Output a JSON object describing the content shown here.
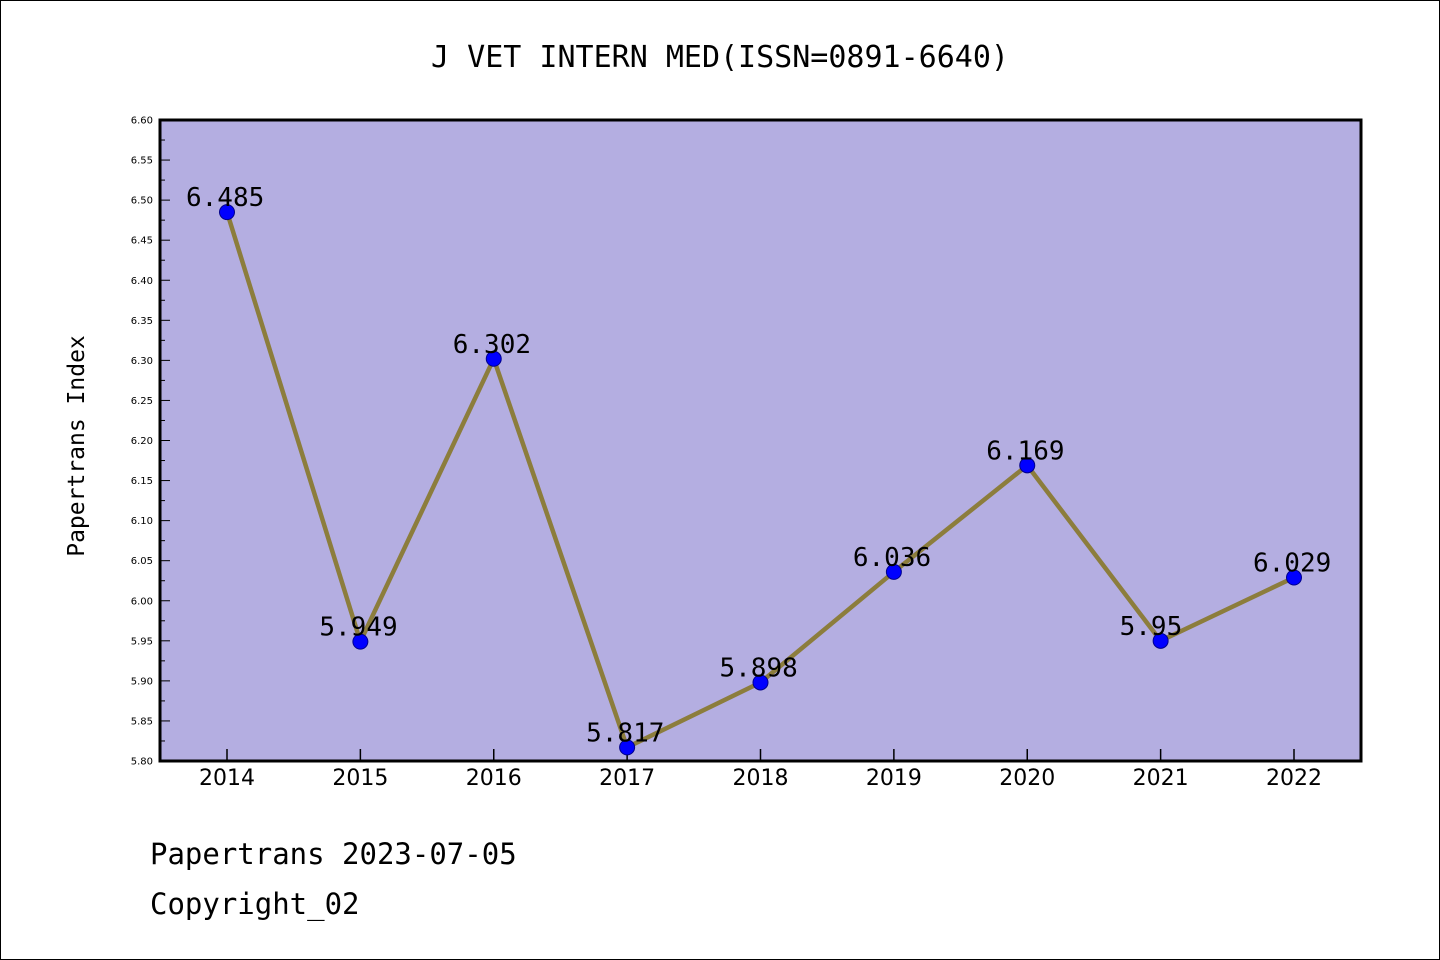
{
  "chart_data": {
    "type": "line",
    "title": "J VET INTERN MED(ISSN=0891-6640)",
    "xlabel": "",
    "ylabel": "Papertrans Index",
    "categories": [
      "2014",
      "2015",
      "2016",
      "2017",
      "2018",
      "2019",
      "2020",
      "2021",
      "2022"
    ],
    "values": [
      6.485,
      5.949,
      6.302,
      5.817,
      5.898,
      6.036,
      6.169,
      5.95,
      6.029
    ],
    "data_labels": [
      "6.485",
      "5.949",
      "6.302",
      "5.817",
      "5.898",
      "6.036",
      "6.169",
      "5.95",
      "6.029"
    ],
    "ylim": [
      5.8,
      6.6
    ],
    "yticks": [
      "5.80",
      "5.85",
      "5.90",
      "5.95",
      "6.00",
      "6.05",
      "6.10",
      "6.15",
      "6.20",
      "6.25",
      "6.30",
      "6.35",
      "6.40",
      "6.45",
      "6.50",
      "6.55",
      "6.60"
    ],
    "grid": false,
    "legend": "none",
    "colors": {
      "plot_background": "#b4aee1",
      "line": "#8c7d3c",
      "marker": "#0000ff"
    }
  },
  "footer": {
    "line1": "Papertrans 2023-07-05",
    "line2": "Copyright_02"
  }
}
